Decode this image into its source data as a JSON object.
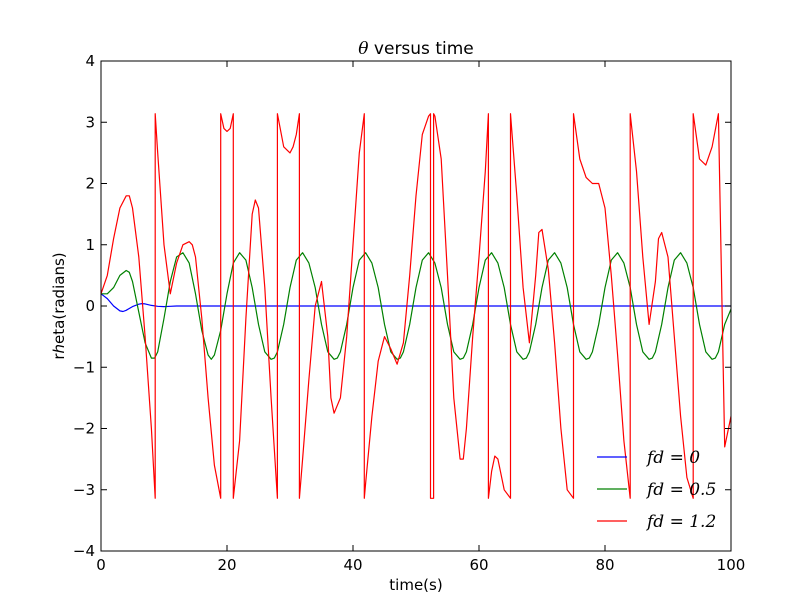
{
  "chart_data": {
    "type": "line",
    "title_symbol": "θ",
    "title_rest": " versus time",
    "xlabel": "time(s)",
    "ylabel": "rℎeta(radians)",
    "xlim": [
      0,
      100
    ],
    "ylim": [
      -4,
      4
    ],
    "xticks": [
      0,
      20,
      40,
      60,
      80,
      100
    ],
    "yticks": [
      -4,
      -3,
      -2,
      -1,
      0,
      1,
      2,
      3,
      4
    ],
    "xtick_labels": [
      "0",
      "20",
      "40",
      "60",
      "80",
      "100"
    ],
    "ytick_labels": [
      "−4",
      "−3",
      "−2",
      "−1",
      "0",
      "1",
      "2",
      "3",
      "4"
    ],
    "legend_position": "lower-right",
    "series": [
      {
        "name": "fd=0",
        "label": "fd = 0",
        "color": "#0000ff",
        "x": [
          0,
          1,
          2,
          3,
          3.5,
          4,
          5,
          6,
          6.5,
          7,
          8,
          9,
          10,
          11,
          12,
          14,
          16,
          100
        ],
        "y": [
          0.2,
          0.12,
          0.0,
          -0.08,
          -0.09,
          -0.07,
          -0.01,
          0.03,
          0.04,
          0.035,
          0.01,
          -0.005,
          -0.01,
          -0.005,
          0.0,
          0.0,
          0.0,
          0.0
        ]
      },
      {
        "name": "fd=0.5",
        "label": "fd = 0.5",
        "color": "#008000",
        "x": [
          0,
          1,
          2,
          3,
          4,
          4.5,
          5,
          6,
          7,
          8,
          8.5,
          9,
          10,
          11,
          12,
          13,
          14,
          15,
          16,
          17,
          17.5,
          18,
          19,
          20,
          21,
          22,
          23,
          24,
          25,
          26,
          27,
          27.5,
          28,
          29,
          30,
          31,
          32,
          33,
          34,
          35,
          36,
          37,
          37.5,
          38,
          39,
          40,
          41,
          42,
          43,
          44,
          45,
          46,
          47,
          47.5,
          48,
          49,
          50,
          51,
          52,
          53,
          54,
          55,
          56,
          57,
          57.5,
          58,
          59,
          60,
          61,
          62,
          63,
          64,
          65,
          66,
          67,
          67.5,
          68,
          69,
          70,
          71,
          72,
          73,
          74,
          75,
          76,
          77,
          77.5,
          78,
          79,
          80,
          81,
          82,
          83,
          84,
          85,
          86,
          87,
          87.5,
          88,
          89,
          90,
          91,
          92,
          93,
          94,
          95,
          96,
          97,
          97.5,
          98,
          99,
          100
        ],
        "y": [
          0.2,
          0.2,
          0.3,
          0.5,
          0.58,
          0.55,
          0.4,
          -0.1,
          -0.6,
          -0.85,
          -0.85,
          -0.75,
          -0.2,
          0.4,
          0.8,
          0.87,
          0.7,
          0.2,
          -0.4,
          -0.8,
          -0.87,
          -0.8,
          -0.4,
          0.2,
          0.7,
          0.87,
          0.75,
          0.3,
          -0.3,
          -0.75,
          -0.87,
          -0.85,
          -0.75,
          -0.3,
          0.3,
          0.75,
          0.87,
          0.7,
          0.3,
          -0.3,
          -0.75,
          -0.87,
          -0.85,
          -0.75,
          -0.3,
          0.3,
          0.75,
          0.87,
          0.7,
          0.3,
          -0.3,
          -0.75,
          -0.87,
          -0.85,
          -0.75,
          -0.3,
          0.3,
          0.75,
          0.87,
          0.7,
          0.3,
          -0.3,
          -0.75,
          -0.87,
          -0.85,
          -0.75,
          -0.3,
          0.3,
          0.75,
          0.87,
          0.7,
          0.3,
          -0.3,
          -0.75,
          -0.87,
          -0.85,
          -0.75,
          -0.3,
          0.3,
          0.75,
          0.87,
          0.7,
          0.3,
          -0.3,
          -0.75,
          -0.87,
          -0.85,
          -0.75,
          -0.3,
          0.3,
          0.75,
          0.87,
          0.7,
          0.3,
          -0.3,
          -0.75,
          -0.87,
          -0.85,
          -0.75,
          -0.3,
          0.3,
          0.75,
          0.87,
          0.7,
          0.3,
          -0.3,
          -0.75,
          -0.87,
          -0.85,
          -0.75,
          -0.3,
          -0.05
        ]
      },
      {
        "name": "fd=1.2",
        "label": "fd = 1.2",
        "color": "#ff0000",
        "x": [
          0,
          1,
          2,
          3,
          4,
          4.5,
          5,
          6,
          7,
          8,
          8.6,
          8.6,
          9,
          10,
          11,
          12,
          13,
          14,
          14.5,
          15,
          16,
          17,
          18,
          19,
          19,
          19.5,
          20,
          20.5,
          21,
          21,
          22,
          23,
          24,
          24.5,
          25,
          26,
          27,
          28,
          28,
          29,
          30,
          30.5,
          31,
          31.5,
          31.5,
          32,
          33,
          34,
          35,
          36,
          36.5,
          37,
          38,
          39,
          40,
          41,
          41.8,
          41.8,
          42,
          43,
          44,
          45,
          46,
          47,
          48,
          49,
          50,
          51,
          52,
          52.3,
          52.3,
          52.8,
          52.8,
          53,
          54,
          55,
          56,
          57,
          57.5,
          58,
          59,
          60,
          61,
          61.5,
          61.5,
          62,
          62.5,
          63,
          64,
          65,
          65,
          66,
          67,
          68,
          69,
          69.5,
          70,
          71,
          72,
          73,
          74,
          75,
          75,
          76,
          77,
          78,
          79,
          80,
          81,
          82,
          83,
          84,
          84,
          85,
          86,
          87,
          88,
          88.5,
          89,
          90,
          91,
          92,
          93,
          94,
          94,
          95,
          96,
          97,
          98,
          99,
          100
        ],
        "y": [
          0.2,
          0.5,
          1.1,
          1.6,
          1.8,
          1.8,
          1.6,
          0.8,
          -0.5,
          -2.0,
          -3.14,
          3.14,
          2.5,
          1.0,
          0.2,
          0.7,
          1.0,
          1.05,
          1.0,
          0.8,
          -0.2,
          -1.5,
          -2.6,
          -3.14,
          3.14,
          2.9,
          2.85,
          2.9,
          3.14,
          -3.14,
          -2.2,
          -0.2,
          1.5,
          1.73,
          1.6,
          0.3,
          -1.5,
          -3.14,
          3.14,
          2.6,
          2.5,
          2.6,
          2.8,
          3.14,
          -3.14,
          -2.5,
          -1.2,
          0.0,
          0.4,
          -0.5,
          -1.5,
          -1.75,
          -1.5,
          -0.5,
          1.0,
          2.5,
          3.14,
          -3.14,
          -2.9,
          -1.8,
          -0.9,
          -0.5,
          -0.7,
          -0.95,
          -0.6,
          0.5,
          1.8,
          2.8,
          3.1,
          3.14,
          -3.14,
          -3.14,
          3.14,
          3.1,
          2.4,
          0.5,
          -1.5,
          -2.5,
          -2.5,
          -2.0,
          -0.5,
          0.8,
          2.2,
          3.14,
          -3.14,
          -2.7,
          -2.45,
          -2.5,
          -3.0,
          -3.14,
          3.14,
          1.8,
          0.3,
          -0.6,
          0.5,
          1.2,
          1.25,
          0.6,
          -0.6,
          -2.0,
          -3.0,
          -3.14,
          3.14,
          2.4,
          2.1,
          2.0,
          2.0,
          1.6,
          0.5,
          -0.8,
          -2.2,
          -3.14,
          3.14,
          2.2,
          0.8,
          -0.3,
          0.4,
          1.1,
          1.2,
          0.8,
          -0.5,
          -1.8,
          -2.8,
          -3.14,
          3.14,
          2.4,
          2.3,
          2.6,
          3.14,
          -2.3,
          -1.8
        ]
      }
    ]
  }
}
